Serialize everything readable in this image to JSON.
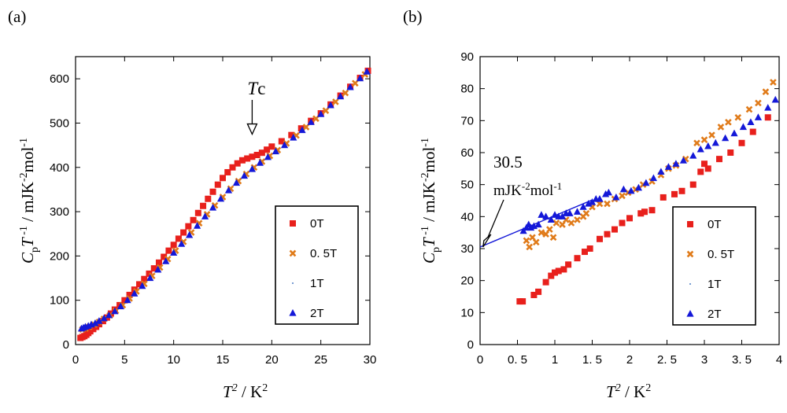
{
  "chart_data": [
    {
      "panel": "(a)",
      "type": "scatter",
      "xlabel": "T 2 / K2",
      "ylabel": "Cp T -1 / mJK-2mol-1",
      "xlim": [
        0,
        30
      ],
      "ylim": [
        0,
        650
      ],
      "xticks": [
        0,
        5,
        10,
        15,
        20,
        25,
        30
      ],
      "xtick_labels": [
        "0",
        "5",
        "10",
        "15",
        "20",
        "25",
        "30"
      ],
      "yticks": [
        0,
        100,
        200,
        300,
        400,
        500,
        600
      ],
      "ytick_labels": [
        "0",
        "100",
        "200",
        "300",
        "400",
        "500",
        "600"
      ],
      "annotation": {
        "text": "Tc",
        "x": 18,
        "y": 475
      },
      "legend": [
        "0T",
        "0. 5T",
        "1T",
        "2T"
      ],
      "series": [
        {
          "name": "0T",
          "color": "#e8201c",
          "marker": "square",
          "points": [
            [
              0.5,
              15
            ],
            [
              0.7,
              17
            ],
            [
              0.9,
              19
            ],
            [
              1.1,
              22
            ],
            [
              1.3,
              26
            ],
            [
              1.5,
              30
            ],
            [
              1.8,
              35
            ],
            [
              2.1,
              40
            ],
            [
              2.4,
              46
            ],
            [
              2.8,
              53
            ],
            [
              3.2,
              61
            ],
            [
              3.6,
              70
            ],
            [
              4.0,
              79
            ],
            [
              4.5,
              89
            ],
            [
              5.0,
              100
            ],
            [
              5.5,
              112
            ],
            [
              6.0,
              124
            ],
            [
              6.5,
              136
            ],
            [
              7.0,
              148
            ],
            [
              7.5,
              160
            ],
            [
              8.0,
              172
            ],
            [
              8.5,
              185
            ],
            [
              9.0,
              198
            ],
            [
              9.5,
              212
            ],
            [
              10.0,
              225
            ],
            [
              10.5,
              239
            ],
            [
              11.0,
              253
            ],
            [
              11.5,
              267
            ],
            [
              12.0,
              281
            ],
            [
              12.5,
              297
            ],
            [
              13.0,
              313
            ],
            [
              13.5,
              329
            ],
            [
              14.0,
              345
            ],
            [
              14.5,
              361
            ],
            [
              15.0,
              376
            ],
            [
              15.5,
              389
            ],
            [
              16.0,
              400
            ],
            [
              16.5,
              409
            ],
            [
              17.0,
              416
            ],
            [
              17.5,
              420
            ],
            [
              18.0,
              424
            ],
            [
              18.5,
              428
            ],
            [
              19.0,
              433
            ],
            [
              19.5,
              440
            ],
            [
              20.0,
              447
            ],
            [
              21.0,
              459
            ],
            [
              22.0,
              473
            ],
            [
              23.0,
              488
            ],
            [
              24.0,
              505
            ],
            [
              25.0,
              522
            ],
            [
              26.0,
              542
            ],
            [
              27.0,
              562
            ],
            [
              28.0,
              582
            ],
            [
              29.0,
              602
            ],
            [
              29.8,
              618
            ]
          ]
        },
        {
          "name": "0. 5T",
          "color": "#e07b1a",
          "marker": "x",
          "points": [
            [
              0.7,
              34
            ],
            [
              1.0,
              36
            ],
            [
              1.4,
              40
            ],
            [
              1.9,
              45
            ],
            [
              2.4,
              51
            ],
            [
              2.9,
              58
            ],
            [
              3.5,
              66
            ],
            [
              4.1,
              76
            ],
            [
              4.8,
              89
            ],
            [
              5.5,
              104
            ],
            [
              6.2,
              120
            ],
            [
              7.0,
              137
            ],
            [
              7.8,
              155
            ],
            [
              8.6,
              174
            ],
            [
              9.4,
              193
            ],
            [
              10.2,
              212
            ],
            [
              11.0,
              232
            ],
            [
              11.8,
              253
            ],
            [
              12.6,
              274
            ],
            [
              13.4,
              294
            ],
            [
              14.2,
              314
            ],
            [
              15.0,
              333
            ],
            [
              15.8,
              352
            ],
            [
              16.6,
              369
            ],
            [
              17.4,
              385
            ],
            [
              18.2,
              400
            ],
            [
              19.0,
              413
            ],
            [
              19.8,
              426
            ],
            [
              20.6,
              439
            ],
            [
              21.5,
              454
            ],
            [
              22.5,
              472
            ],
            [
              23.5,
              491
            ],
            [
              24.5,
              510
            ],
            [
              25.5,
              528
            ],
            [
              26.5,
              548
            ],
            [
              27.5,
              568
            ],
            [
              28.5,
              590
            ],
            [
              29.5,
              610
            ]
          ]
        },
        {
          "name": "1T",
          "color": "#4d7dc4",
          "marker": "dot",
          "points": []
        },
        {
          "name": "2T",
          "color": "#1418d8",
          "marker": "triangle",
          "points": [
            [
              0.6,
              36
            ],
            [
              0.8,
              38
            ],
            [
              1.0,
              40
            ],
            [
              1.3,
              42
            ],
            [
              1.6,
              45
            ],
            [
              2.0,
              48
            ],
            [
              2.4,
              53
            ],
            [
              2.9,
              59
            ],
            [
              3.4,
              66
            ],
            [
              4.0,
              75
            ],
            [
              4.6,
              86
            ],
            [
              5.3,
              100
            ],
            [
              6.0,
              115
            ],
            [
              6.8,
              132
            ],
            [
              7.6,
              150
            ],
            [
              8.4,
              169
            ],
            [
              9.2,
              188
            ],
            [
              10.0,
              207
            ],
            [
              10.8,
              227
            ],
            [
              11.6,
              247
            ],
            [
              12.4,
              268
            ],
            [
              13.2,
              289
            ],
            [
              14.0,
              309
            ],
            [
              14.8,
              329
            ],
            [
              15.6,
              348
            ],
            [
              16.4,
              365
            ],
            [
              17.2,
              381
            ],
            [
              18.0,
              396
            ],
            [
              18.8,
              410
            ],
            [
              19.6,
              423
            ],
            [
              20.4,
              436
            ],
            [
              21.3,
              450
            ],
            [
              22.2,
              467
            ],
            [
              23.1,
              484
            ],
            [
              24.0,
              502
            ],
            [
              25.0,
              520
            ],
            [
              26.0,
              540
            ],
            [
              27.0,
              560
            ],
            [
              28.0,
              581
            ],
            [
              29.0,
              601
            ],
            [
              29.7,
              616
            ]
          ]
        }
      ]
    },
    {
      "panel": "(b)",
      "type": "scatter",
      "xlabel": "T 2 / K2",
      "ylabel": "Cp T -1 / mJK-2mol-1",
      "xlim": [
        0,
        4
      ],
      "ylim": [
        0,
        90
      ],
      "xticks": [
        0,
        0.5,
        1,
        1.5,
        2,
        2.5,
        3,
        3.5,
        4
      ],
      "xtick_labels": [
        "0",
        "0. 5",
        "1",
        "1. 5",
        "2",
        "2. 5",
        "3",
        "3. 5",
        "4"
      ],
      "yticks": [
        0,
        10,
        20,
        30,
        40,
        50,
        60,
        70,
        80,
        90
      ],
      "ytick_labels": [
        "0",
        "10",
        "20",
        "30",
        "40",
        "50",
        "60",
        "70",
        "80",
        "90"
      ],
      "annotation": {
        "value": "30.5",
        "unit": "mJK-2mol-1",
        "x": 0,
        "y": 30.5
      },
      "fit_line": {
        "intercept": 30.5,
        "slope": 9.8,
        "x_range": [
          0,
          1.5
        ]
      },
      "legend": [
        "0T",
        "0. 5T",
        "1T",
        "2T"
      ],
      "series": [
        {
          "name": "0T",
          "color": "#e8201c",
          "marker": "square",
          "points": [
            [
              0.53,
              13.5
            ],
            [
              0.57,
              13.5
            ],
            [
              0.72,
              15.5
            ],
            [
              0.78,
              16.5
            ],
            [
              0.88,
              19.5
            ],
            [
              0.95,
              21.5
            ],
            [
              1.0,
              22.5
            ],
            [
              1.05,
              23
            ],
            [
              1.12,
              23.5
            ],
            [
              1.18,
              25
            ],
            [
              1.3,
              27
            ],
            [
              1.4,
              29
            ],
            [
              1.47,
              30
            ],
            [
              1.6,
              33
            ],
            [
              1.7,
              34.5
            ],
            [
              1.8,
              36
            ],
            [
              1.9,
              38
            ],
            [
              2.0,
              39.5
            ],
            [
              2.15,
              41
            ],
            [
              2.2,
              41.5
            ],
            [
              2.3,
              42
            ],
            [
              2.45,
              46
            ],
            [
              2.6,
              47
            ],
            [
              2.7,
              48
            ],
            [
              2.85,
              50
            ],
            [
              2.95,
              54
            ],
            [
              3.0,
              56.5
            ],
            [
              3.05,
              55
            ],
            [
              3.2,
              58
            ],
            [
              3.35,
              60
            ],
            [
              3.5,
              63
            ],
            [
              3.65,
              66.5
            ],
            [
              3.85,
              71
            ]
          ]
        },
        {
          "name": "0. 5T",
          "color": "#e07b1a",
          "marker": "x",
          "points": [
            [
              0.62,
              32.5
            ],
            [
              0.66,
              30.5
            ],
            [
              0.7,
              33.5
            ],
            [
              0.75,
              32
            ],
            [
              0.82,
              35
            ],
            [
              0.88,
              34.5
            ],
            [
              0.93,
              36
            ],
            [
              0.98,
              33.5
            ],
            [
              1.02,
              38
            ],
            [
              1.1,
              37.5
            ],
            [
              1.15,
              39
            ],
            [
              1.22,
              38
            ],
            [
              1.3,
              39
            ],
            [
              1.38,
              40
            ],
            [
              1.42,
              41
            ],
            [
              1.5,
              43
            ],
            [
              1.6,
              44
            ],
            [
              1.7,
              44
            ],
            [
              1.8,
              45.5
            ],
            [
              1.9,
              46.5
            ],
            [
              1.98,
              47.5
            ],
            [
              2.08,
              48.5
            ],
            [
              2.18,
              50
            ],
            [
              2.3,
              51
            ],
            [
              2.42,
              53
            ],
            [
              2.52,
              55
            ],
            [
              2.62,
              56
            ],
            [
              2.75,
              58
            ],
            [
              2.9,
              63
            ],
            [
              3.0,
              64
            ],
            [
              3.1,
              65.5
            ],
            [
              3.22,
              68
            ],
            [
              3.32,
              69.5
            ],
            [
              3.45,
              71
            ],
            [
              3.6,
              73.5
            ],
            [
              3.72,
              75.5
            ],
            [
              3.82,
              79
            ],
            [
              3.92,
              82
            ]
          ]
        },
        {
          "name": "1T",
          "color": "#4d7dc4",
          "marker": "dot",
          "points": []
        },
        {
          "name": "2T",
          "color": "#1418d8",
          "marker": "triangle",
          "points": [
            [
              0.58,
              35.5
            ],
            [
              0.62,
              36.5
            ],
            [
              0.65,
              37.5
            ],
            [
              0.68,
              36.5
            ],
            [
              0.72,
              37
            ],
            [
              0.78,
              37.5
            ],
            [
              0.82,
              40.5
            ],
            [
              0.88,
              40
            ],
            [
              0.95,
              39
            ],
            [
              1.0,
              40.5
            ],
            [
              1.05,
              40
            ],
            [
              1.1,
              40
            ],
            [
              1.15,
              41
            ],
            [
              1.2,
              41
            ],
            [
              1.3,
              41.5
            ],
            [
              1.38,
              43
            ],
            [
              1.45,
              44
            ],
            [
              1.5,
              44.5
            ],
            [
              1.55,
              45.5
            ],
            [
              1.6,
              45.5
            ],
            [
              1.68,
              47
            ],
            [
              1.72,
              47.5
            ],
            [
              1.82,
              46
            ],
            [
              1.92,
              48.5
            ],
            [
              2.02,
              48
            ],
            [
              2.12,
              49
            ],
            [
              2.22,
              50.5
            ],
            [
              2.32,
              52
            ],
            [
              2.42,
              54
            ],
            [
              2.52,
              55.5
            ],
            [
              2.62,
              56.5
            ],
            [
              2.72,
              57.5
            ],
            [
              2.85,
              59
            ],
            [
              2.95,
              61
            ],
            [
              3.05,
              62
            ],
            [
              3.15,
              63
            ],
            [
              3.28,
              64.5
            ],
            [
              3.4,
              66
            ],
            [
              3.52,
              68
            ],
            [
              3.62,
              69.5
            ],
            [
              3.72,
              71
            ],
            [
              3.85,
              74
            ],
            [
              3.95,
              76.5
            ]
          ]
        }
      ]
    }
  ]
}
